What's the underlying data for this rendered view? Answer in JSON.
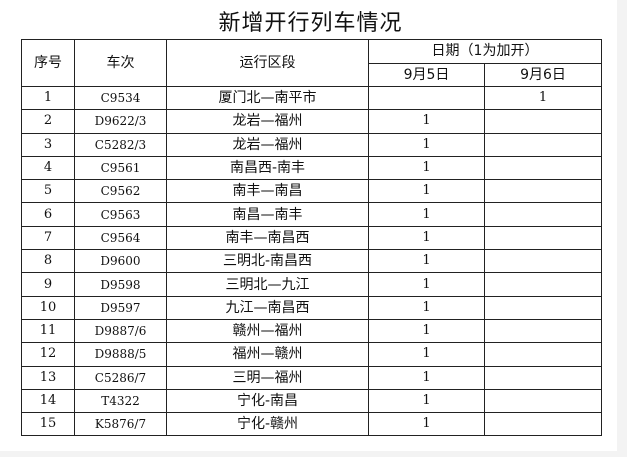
{
  "title": "新增开行列车情况",
  "headers": {
    "index": "序号",
    "train": "车次",
    "section": "运行区段",
    "date_group": "日期（1为加开）",
    "date1": "9月5日",
    "date2": "9月6日"
  },
  "rows": [
    {
      "no": "1",
      "train": "C9534",
      "section": "厦门北—南平市",
      "d1": "",
      "d2": "1"
    },
    {
      "no": "2",
      "train": "D9622/3",
      "section": "龙岩—福州",
      "d1": "1",
      "d2": ""
    },
    {
      "no": "3",
      "train": "C5282/3",
      "section": "龙岩—福州",
      "d1": "1",
      "d2": ""
    },
    {
      "no": "4",
      "train": "C9561",
      "section": "南昌西-南丰",
      "d1": "1",
      "d2": ""
    },
    {
      "no": "5",
      "train": "C9562",
      "section": "南丰—南昌",
      "d1": "1",
      "d2": ""
    },
    {
      "no": "6",
      "train": "C9563",
      "section": "南昌—南丰",
      "d1": "1",
      "d2": ""
    },
    {
      "no": "7",
      "train": "C9564",
      "section": "南丰—南昌西",
      "d1": "1",
      "d2": ""
    },
    {
      "no": "8",
      "train": "D9600",
      "section": "三明北-南昌西",
      "d1": "1",
      "d2": ""
    },
    {
      "no": "9",
      "train": "D9598",
      "section": "三明北—九江",
      "d1": "1",
      "d2": ""
    },
    {
      "no": "10",
      "train": "D9597",
      "section": "九江—南昌西",
      "d1": "1",
      "d2": ""
    },
    {
      "no": "11",
      "train": "D9887/6",
      "section": "赣州—福州",
      "d1": "1",
      "d2": ""
    },
    {
      "no": "12",
      "train": "D9888/5",
      "section": "福州—赣州",
      "d1": "1",
      "d2": ""
    },
    {
      "no": "13",
      "train": "C5286/7",
      "section": "三明—福州",
      "d1": "1",
      "d2": ""
    },
    {
      "no": "14",
      "train": "T4322",
      "section": "宁化-南昌",
      "d1": "1",
      "d2": ""
    },
    {
      "no": "15",
      "train": "K5876/7",
      "section": "宁化-赣州",
      "d1": "1",
      "d2": ""
    }
  ]
}
